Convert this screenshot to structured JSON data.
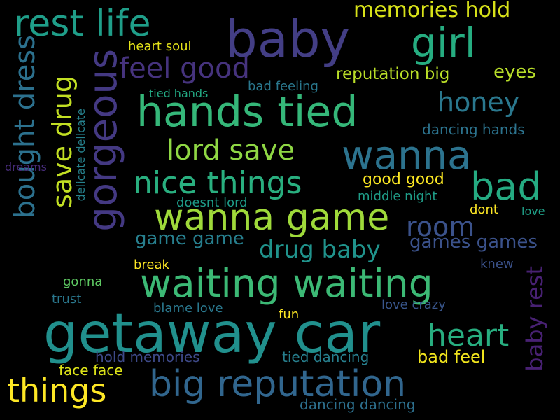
{
  "words": [
    {
      "text": "getaway car",
      "color": "#21908d"
    },
    {
      "text": "hands tied",
      "color": "#35b779"
    },
    {
      "text": "waiting waiting",
      "color": "#3cb975"
    },
    {
      "text": "baby",
      "color": "#433e85"
    },
    {
      "text": "gorgeous",
      "color": "#443983"
    },
    {
      "text": "big reputation",
      "color": "#31668e"
    },
    {
      "text": "wanna game",
      "color": "#9fda3a"
    },
    {
      "text": "wanna",
      "color": "#2c738e"
    },
    {
      "text": "rest life",
      "color": "#1f9e89"
    },
    {
      "text": "girl",
      "color": "#26ad81"
    },
    {
      "text": "bad",
      "color": "#25ab82"
    },
    {
      "text": "bought dress",
      "color": "#2c718e"
    },
    {
      "text": "nice things",
      "color": "#29af7f"
    },
    {
      "text": "things",
      "color": "#fde725"
    },
    {
      "text": "heart",
      "color": "#28ae80"
    },
    {
      "text": "feel good",
      "color": "#46337e"
    },
    {
      "text": "save drug",
      "color": "#c2df23"
    },
    {
      "text": "lord save",
      "color": "#8fd744"
    },
    {
      "text": "honey",
      "color": "#2a788e"
    },
    {
      "text": "room",
      "color": "#3b528b"
    },
    {
      "text": "drug baby",
      "color": "#20938c"
    },
    {
      "text": "baby rest",
      "color": "#482173"
    },
    {
      "text": "memories hold",
      "color": "#d8e219"
    },
    {
      "text": "game game",
      "color": "#277f8e"
    },
    {
      "text": "games games",
      "color": "#3b528b"
    },
    {
      "text": "reputation big",
      "color": "#bade28"
    },
    {
      "text": "eyes",
      "color": "#b8de29"
    },
    {
      "text": "bad feel",
      "color": "#f1e51d"
    },
    {
      "text": "good good",
      "color": "#fbe723"
    },
    {
      "text": "dancing hands",
      "color": "#2c738e"
    },
    {
      "text": "dancing dancing",
      "color": "#2d708e"
    },
    {
      "text": "tied dancing",
      "color": "#277f8e"
    },
    {
      "text": "hold memories",
      "color": "#3e4a89"
    },
    {
      "text": "face face",
      "color": "#dde318"
    },
    {
      "text": "middle night",
      "color": "#1f9e89"
    },
    {
      "text": "blame love",
      "color": "#2a788e"
    },
    {
      "text": "love crazy",
      "color": "#39568c"
    },
    {
      "text": "heart soul",
      "color": "#e5e419"
    },
    {
      "text": "bad feeling",
      "color": "#2a788e"
    },
    {
      "text": "tied hands",
      "color": "#23a983"
    },
    {
      "text": "doesnt lord",
      "color": "#1e9c89"
    },
    {
      "text": "delicate delicate",
      "color": "#26828e"
    },
    {
      "text": "dreams",
      "color": "#472c7a"
    },
    {
      "text": "dont",
      "color": "#fde725"
    },
    {
      "text": "love",
      "color": "#1fa088"
    },
    {
      "text": "break",
      "color": "#fde725"
    },
    {
      "text": "knew",
      "color": "#3b528b"
    },
    {
      "text": "gonna",
      "color": "#5ec962"
    },
    {
      "text": "trust",
      "color": "#2a788e"
    },
    {
      "text": "fun",
      "color": "#fde725"
    }
  ]
}
